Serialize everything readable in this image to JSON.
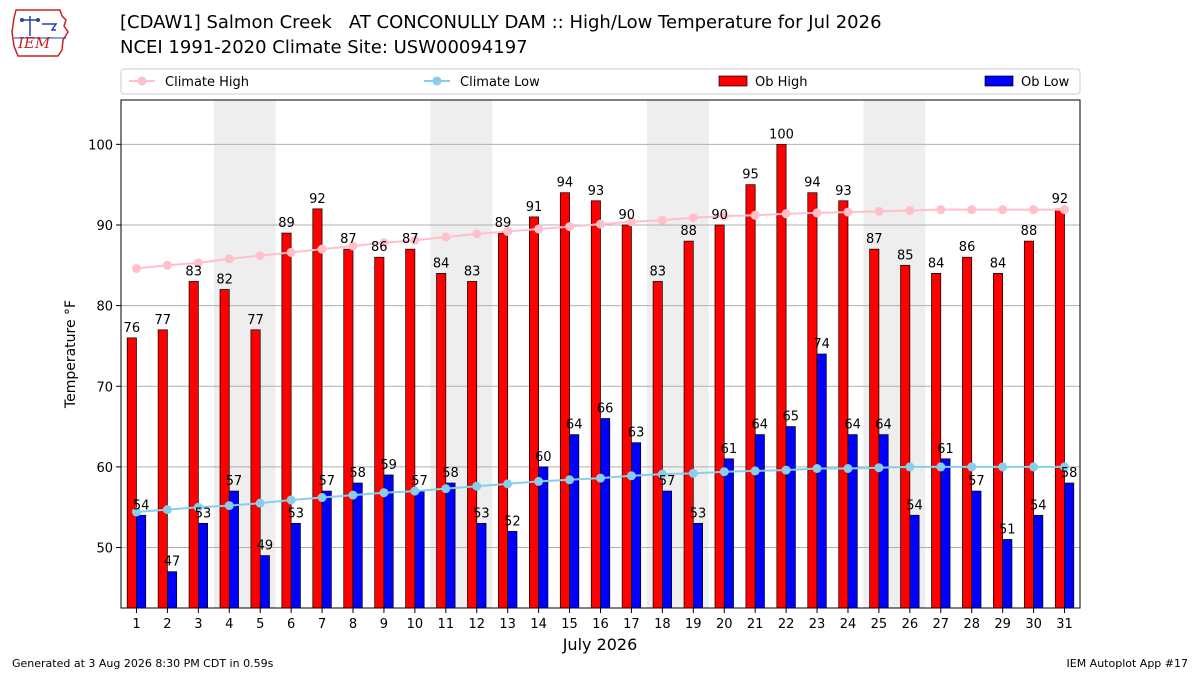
{
  "header": {
    "title_line1": "[CDAW1] Salmon Creek   AT CONCONULLY DAM :: High/Low Temperature for Jul 2026",
    "title_line2": "NCEI 1991-2020 Climate Site: USW00094197",
    "logo_text": "IEM"
  },
  "footer": {
    "generated": "Generated at 3 Aug 2026 8:30 PM CDT in 0.59s",
    "app": "IEM Autoplot App #17"
  },
  "colors": {
    "ob_high": "#ff0000",
    "ob_low": "#0000ff",
    "climate_high": "#ffc0cb",
    "climate_low": "#87ceeb",
    "weekend_band": "#eeeeee",
    "grid": "#b0b0b0"
  },
  "chart_data": {
    "type": "bar",
    "xlabel": "July 2026",
    "ylabel": "Temperature °F",
    "ylim": [
      42.5,
      105.5
    ],
    "yticks": [
      50,
      60,
      70,
      80,
      90,
      100
    ],
    "grid": "horizontal",
    "legend_position": "top",
    "categories": [
      "1",
      "2",
      "3",
      "4",
      "5",
      "6",
      "7",
      "8",
      "9",
      "10",
      "11",
      "12",
      "13",
      "14",
      "15",
      "16",
      "17",
      "18",
      "19",
      "20",
      "21",
      "22",
      "23",
      "24",
      "25",
      "26",
      "27",
      "28",
      "29",
      "30",
      "31"
    ],
    "shaded_days": [
      [
        4,
        5
      ],
      [
        11,
        12
      ],
      [
        18,
        19
      ],
      [
        25,
        26
      ]
    ],
    "series": [
      {
        "name": "Climate High",
        "kind": "line",
        "values": [
          84.6,
          85.0,
          85.3,
          85.8,
          86.2,
          86.6,
          87.0,
          87.4,
          87.8,
          88.1,
          88.5,
          88.9,
          89.2,
          89.5,
          89.8,
          90.1,
          90.4,
          90.6,
          90.9,
          91.1,
          91.2,
          91.4,
          91.5,
          91.6,
          91.7,
          91.8,
          91.9,
          91.9,
          91.9,
          91.9,
          91.9
        ]
      },
      {
        "name": "Climate Low",
        "kind": "line",
        "values": [
          54.4,
          54.7,
          55.0,
          55.2,
          55.5,
          55.9,
          56.2,
          56.5,
          56.8,
          57.0,
          57.3,
          57.6,
          57.9,
          58.2,
          58.4,
          58.6,
          58.9,
          59.1,
          59.2,
          59.4,
          59.5,
          59.6,
          59.8,
          59.8,
          59.9,
          60.0,
          60.0,
          60.0,
          60.0,
          60.0,
          60.0
        ]
      },
      {
        "name": "Ob High",
        "kind": "bar",
        "values": [
          76,
          77,
          83,
          82,
          77,
          89,
          92,
          87,
          86,
          87,
          84,
          83,
          89,
          91,
          94,
          93,
          90,
          83,
          88,
          90,
          95,
          100,
          94,
          93,
          87,
          85,
          84,
          86,
          84,
          88,
          92
        ]
      },
      {
        "name": "Ob Low",
        "kind": "bar",
        "values": [
          54,
          47,
          53,
          57,
          49,
          53,
          57,
          58,
          59,
          57,
          58,
          53,
          52,
          60,
          64,
          66,
          63,
          57,
          53,
          61,
          64,
          65,
          74,
          64,
          64,
          54,
          61,
          57,
          51,
          54,
          58
        ]
      }
    ]
  }
}
